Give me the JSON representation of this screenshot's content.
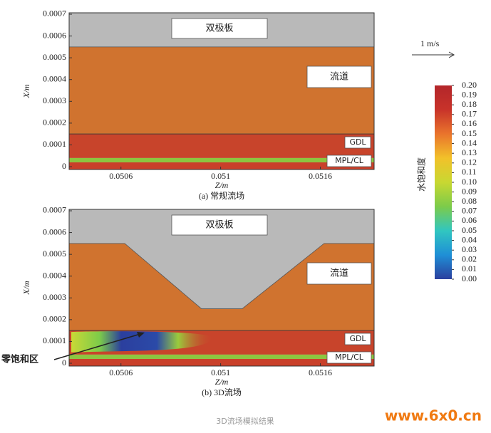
{
  "chart_data": [
    {
      "type": "field",
      "caption": "(a) 常规流场",
      "xlabel": "Z/m",
      "ylabel": "X/m",
      "xlim": [
        0.05034,
        0.05187
      ],
      "ylim": [
        -1.3e-05,
        0.0007065
      ],
      "xticks": [
        0.0506,
        {
          "value": 0.0511,
          "label": "0.051"
        },
        0.0516
      ],
      "yticks": [
        0,
        0.0001,
        0.0002,
        0.0003,
        0.0004,
        0.0005,
        0.0006,
        0.0007
      ],
      "plate_color": "#b9b9b9",
      "channel_color": "#d0732f",
      "plate_edge": {
        "x": [
          0.05034,
          0.05187
        ],
        "y": [
          0.00055,
          0.00055
        ]
      },
      "layers": [
        {
          "y0": -1.3e-05,
          "y1": 2e-05,
          "color": "#c9402a"
        },
        {
          "y0": 2e-05,
          "y1": 4e-05,
          "color": "#8cc63f"
        },
        {
          "y0": 4e-05,
          "y1": 0.00015,
          "color": "#c8442b"
        }
      ],
      "labels": [
        "双极板",
        "流道",
        "GDL",
        "MPL/CL"
      ]
    },
    {
      "type": "field",
      "caption": "(b) 3D流场",
      "xlabel": "Z/m",
      "ylabel": "X/m",
      "xlim": [
        0.05034,
        0.05187
      ],
      "ylim": [
        -1.3e-05,
        0.0007065
      ],
      "xticks": [
        0.0506,
        {
          "value": 0.0511,
          "label": "0.051"
        },
        0.0516
      ],
      "yticks": [
        0,
        0.0001,
        0.0002,
        0.0003,
        0.0004,
        0.0005,
        0.0006,
        0.0007
      ],
      "plate_color": "#b9b9b9",
      "channel_color": "#d0732f",
      "plate_edge": {
        "x": [
          0.05034,
          0.050619,
          0.051004,
          0.051208,
          0.051619,
          0.05187
        ],
        "y": [
          0.00055,
          0.00055,
          0.00025,
          0.00025,
          0.00055,
          0.00055
        ]
      },
      "layers": [
        {
          "y0": -1.3e-05,
          "y1": 2e-05,
          "color": "#c9402a"
        },
        {
          "y0": 2e-05,
          "y1": 4e-05,
          "color": "#8cc63f"
        },
        {
          "y0": 4e-05,
          "y1": 0.00015,
          "color": "#c8442b"
        }
      ],
      "labels": [
        "双极板",
        "流道",
        "GDL",
        "MPL/CL"
      ]
    }
  ],
  "colorbar": {
    "label": "水饱和度",
    "clim": [
      0,
      0.2
    ],
    "colors": [
      "#2b3f9e",
      "#1f8fd6",
      "#31c6c0",
      "#7ccb4a",
      "#c8d832",
      "#f2c12a",
      "#e9742c",
      "#c8332a",
      "#b3262a"
    ],
    "ticks": [
      {
        "value": 0,
        "label": "0.00"
      },
      {
        "value": 0.01,
        "label": "0.01"
      },
      {
        "value": 0.02,
        "label": "0.02"
      },
      {
        "value": 0.03,
        "label": "0.03"
      },
      {
        "value": 0.04,
        "label": "0.04"
      },
      {
        "value": 0.05,
        "label": "0.05"
      },
      {
        "value": 0.06,
        "label": "0.06"
      },
      {
        "value": 0.07,
        "label": "0.07"
      },
      {
        "value": 0.08,
        "label": "0.08"
      },
      {
        "value": 0.09,
        "label": "0.09"
      },
      {
        "value": 0.1,
        "label": "0.10"
      },
      {
        "value": 0.11,
        "label": "0.11"
      },
      {
        "value": 0.12,
        "label": "0.12"
      },
      {
        "value": 0.13,
        "label": "0.13"
      },
      {
        "value": 0.14,
        "label": "0.14"
      },
      {
        "value": 0.15,
        "label": "0.15"
      },
      {
        "value": 0.16,
        "label": "0.16"
      },
      {
        "value": 0.17,
        "label": "0.17"
      },
      {
        "value": 0.18,
        "label": "0.18"
      },
      {
        "value": 0.19,
        "label": "0.19"
      },
      {
        "value": 0.2,
        "label": "0.20"
      }
    ]
  },
  "velocity_scale": "1 m/s",
  "annotation": "零饱和区",
  "footer": "3D流场模拟结果",
  "watermark": "www.6x0.cn"
}
